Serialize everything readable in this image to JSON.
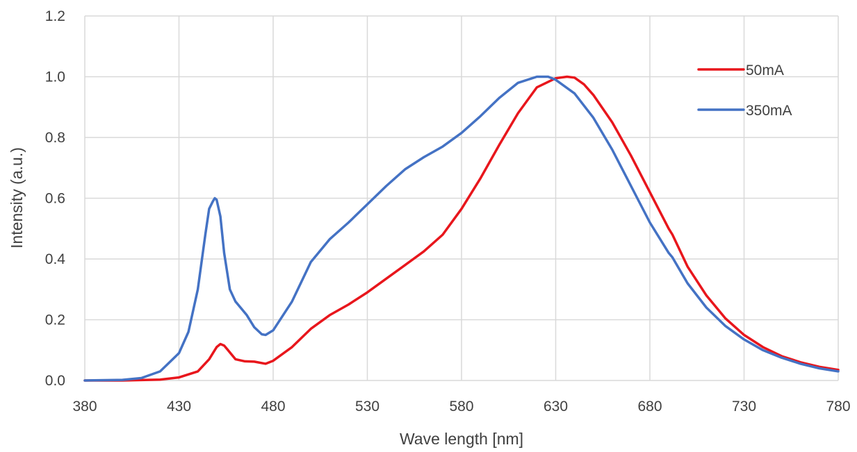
{
  "chart_data": {
    "type": "line",
    "xlabel": "Wave length [nm]",
    "ylabel": "Intensity (a.u.)",
    "xlim": [
      380,
      780
    ],
    "ylim": [
      0,
      1.2
    ],
    "xticks": [
      380,
      430,
      480,
      530,
      580,
      630,
      680,
      730,
      780
    ],
    "yticks": [
      0,
      0.2,
      0.4,
      0.6,
      0.8,
      1.0,
      1.2
    ],
    "xtick_labels": [
      "380",
      "430",
      "480",
      "530",
      "580",
      "630",
      "680",
      "730",
      "780"
    ],
    "ytick_labels": [
      "0.0",
      "0.2",
      "0.4",
      "0.6",
      "0.8",
      "1.0",
      "1.2"
    ],
    "grid": true,
    "legend_position": "top-right",
    "series": [
      {
        "name": "50mA",
        "color": "#e8161c",
        "x": [
          380,
          400,
          420,
          430,
          440,
          446,
          450,
          452,
          454,
          456,
          460,
          465,
          470,
          476,
          480,
          490,
          500,
          510,
          520,
          530,
          540,
          550,
          560,
          570,
          580,
          590,
          600,
          610,
          620,
          630,
          636,
          640,
          645,
          650,
          660,
          670,
          680,
          690,
          692,
          700,
          710,
          720,
          730,
          740,
          750,
          760,
          770,
          780
        ],
        "y": [
          0.0,
          0.0,
          0.003,
          0.01,
          0.03,
          0.07,
          0.11,
          0.12,
          0.115,
          0.1,
          0.07,
          0.063,
          0.062,
          0.055,
          0.065,
          0.11,
          0.17,
          0.215,
          0.25,
          0.29,
          0.335,
          0.38,
          0.425,
          0.48,
          0.565,
          0.665,
          0.775,
          0.88,
          0.965,
          0.995,
          1.0,
          0.997,
          0.975,
          0.94,
          0.85,
          0.74,
          0.62,
          0.5,
          0.48,
          0.375,
          0.28,
          0.205,
          0.15,
          0.11,
          0.08,
          0.06,
          0.045,
          0.035
        ]
      },
      {
        "name": "350mA",
        "color": "#4472c4",
        "x": [
          380,
          400,
          410,
          420,
          430,
          435,
          440,
          444,
          446,
          448,
          449,
          450,
          452,
          454,
          457,
          460,
          466,
          470,
          474,
          476,
          480,
          490,
          500,
          510,
          520,
          530,
          540,
          550,
          560,
          570,
          580,
          590,
          600,
          610,
          620,
          626,
          630,
          640,
          650,
          660,
          670,
          680,
          690,
          692,
          700,
          710,
          720,
          730,
          740,
          750,
          760,
          770,
          780
        ],
        "y": [
          0.0,
          0.002,
          0.008,
          0.03,
          0.09,
          0.16,
          0.3,
          0.48,
          0.565,
          0.59,
          0.6,
          0.595,
          0.54,
          0.42,
          0.3,
          0.26,
          0.215,
          0.175,
          0.152,
          0.15,
          0.165,
          0.26,
          0.39,
          0.465,
          0.52,
          0.58,
          0.64,
          0.695,
          0.735,
          0.77,
          0.815,
          0.87,
          0.93,
          0.98,
          1.0,
          1.0,
          0.99,
          0.945,
          0.865,
          0.76,
          0.64,
          0.52,
          0.42,
          0.405,
          0.32,
          0.24,
          0.18,
          0.135,
          0.1,
          0.075,
          0.055,
          0.04,
          0.03
        ]
      }
    ]
  }
}
